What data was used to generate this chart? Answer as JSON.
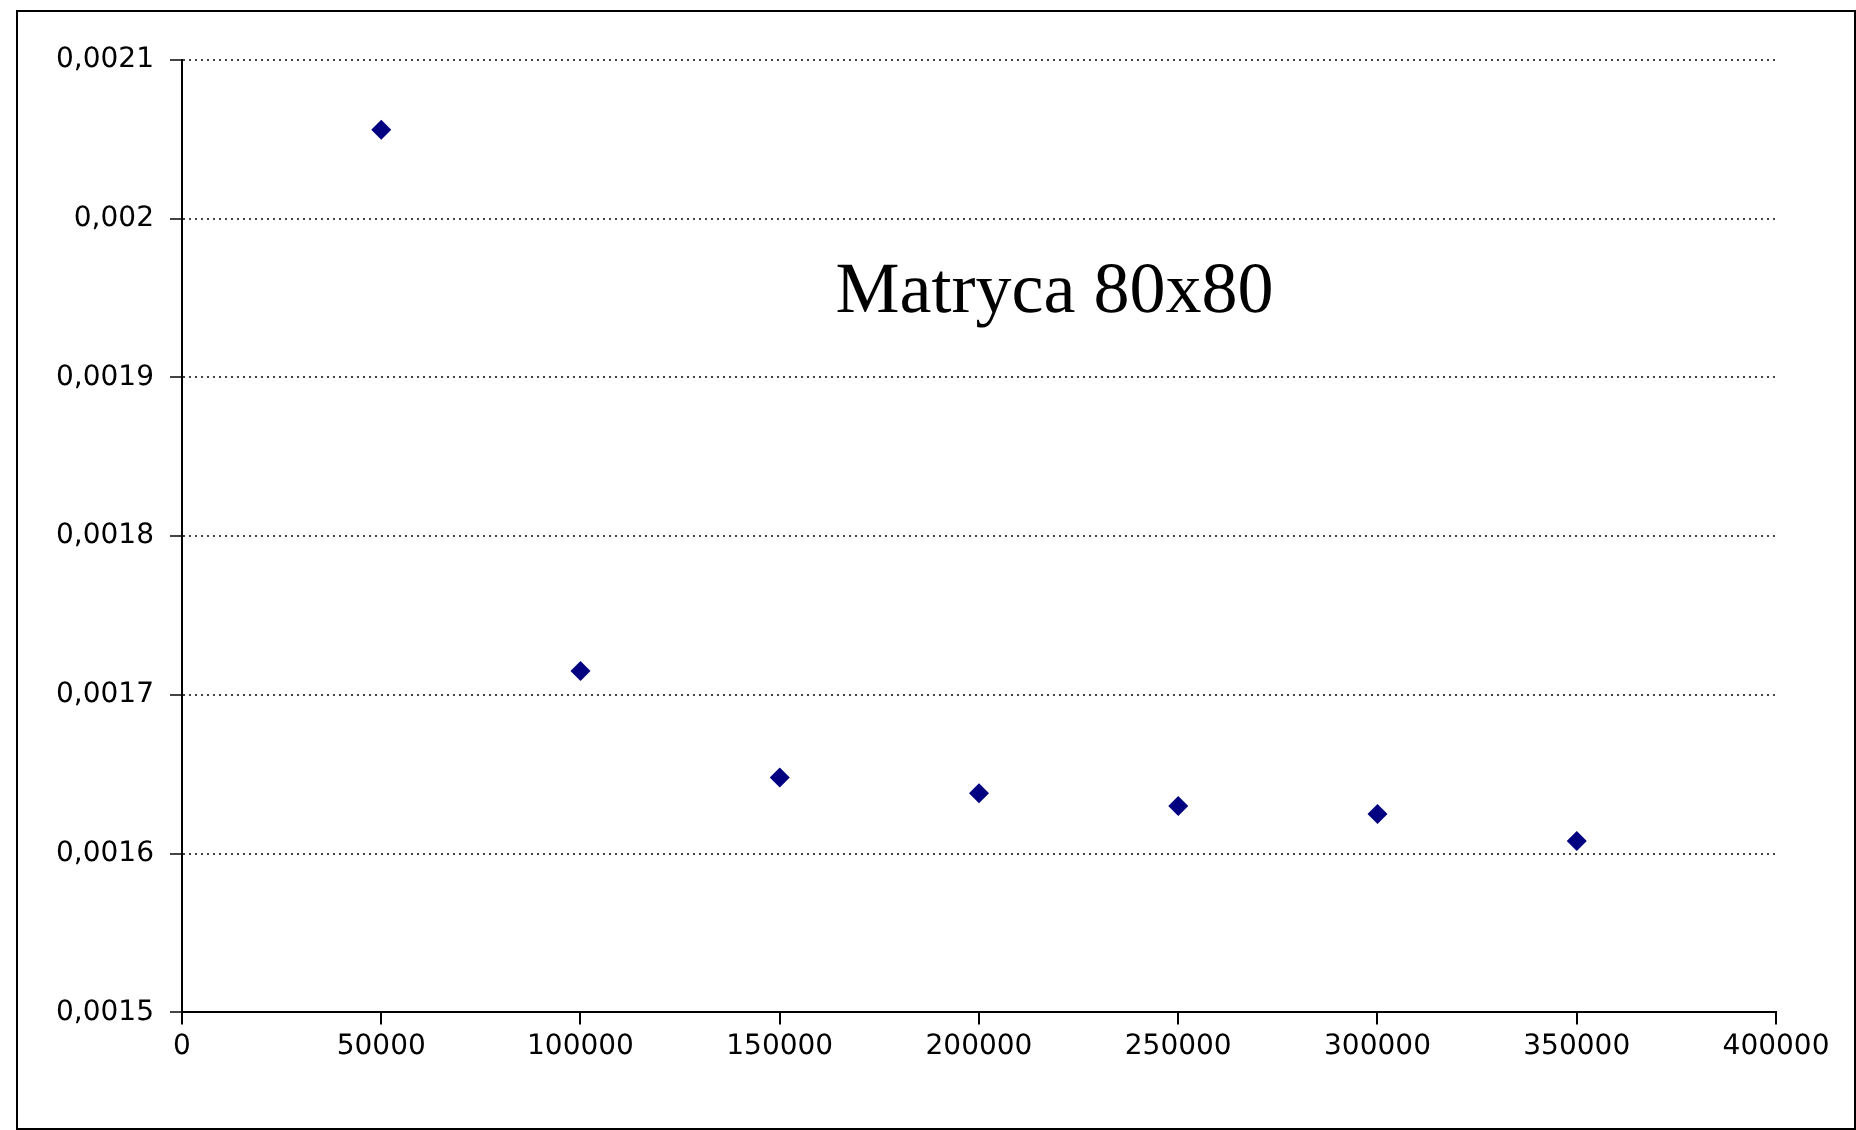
{
  "chart_data": {
    "type": "scatter",
    "x": [
      50000,
      100000,
      150000,
      200000,
      250000,
      300000,
      350000
    ],
    "series": [
      {
        "color": "#000080",
        "values": [
          0.002056,
          0.001715,
          0.001648,
          0.001638,
          0.00163,
          0.001625,
          0.001608
        ]
      }
    ],
    "marker": "diamond",
    "grid": "y",
    "legend": false,
    "annotations": [
      "Matryca 80x80"
    ],
    "xlim": [
      0,
      400000
    ],
    "xticks": [
      0,
      50000,
      100000,
      150000,
      200000,
      250000,
      300000,
      350000,
      400000
    ],
    "ylim": [
      0.0015,
      0.0021
    ],
    "yticks": [
      {
        "value": 0.0015,
        "label": "0,0015"
      },
      {
        "value": 0.0016,
        "label": "0,0016"
      },
      {
        "value": 0.0017,
        "label": "0,0017"
      },
      {
        "value": 0.0018,
        "label": "0,0018"
      },
      {
        "value": 0.0019,
        "label": "0,0019"
      },
      {
        "value": 0.002,
        "label": "0,002"
      },
      {
        "value": 0.0021,
        "label": "0,0021"
      }
    ]
  }
}
